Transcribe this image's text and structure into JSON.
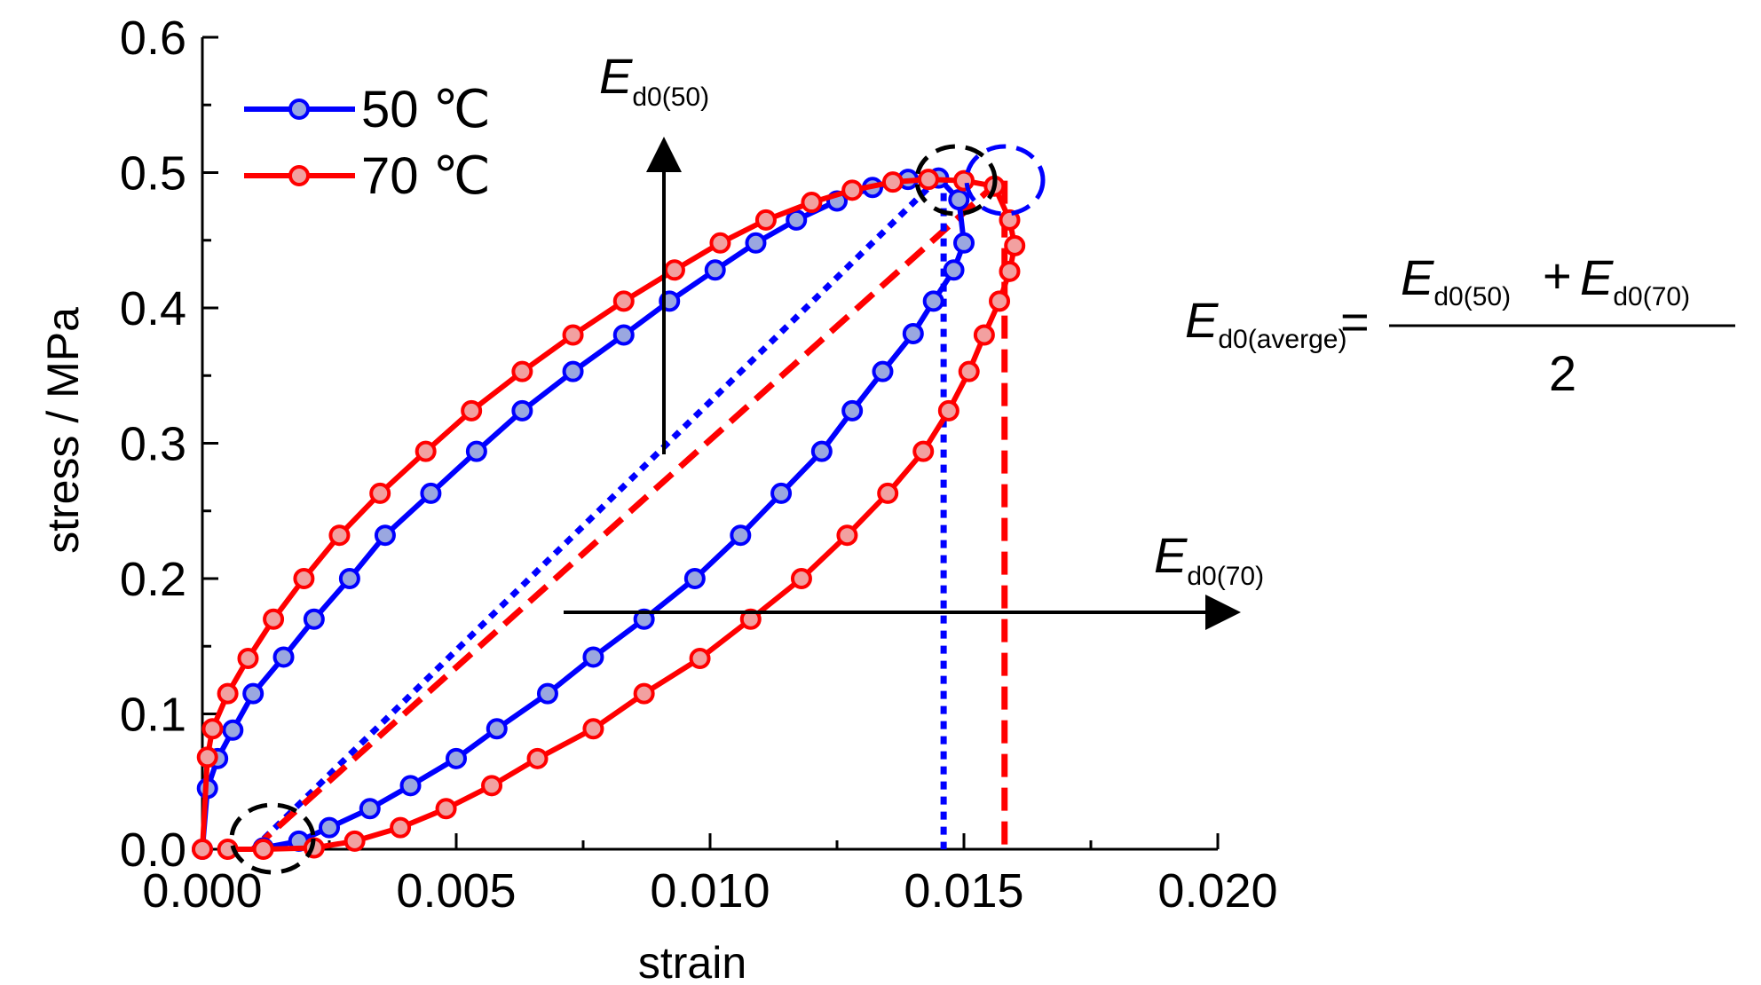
{
  "chart_data": {
    "type": "line",
    "xlabel": "strain",
    "ylabel": "stress / MPa",
    "xlim": [
      0,
      0.02
    ],
    "ylim": [
      0,
      0.6
    ],
    "x_ticks": [
      0.0,
      0.005,
      0.01,
      0.015,
      0.02
    ],
    "x_tick_labels": [
      "0.000",
      "0.005",
      "0.010",
      "0.015",
      "0.020"
    ],
    "y_ticks": [
      0.0,
      0.1,
      0.2,
      0.3,
      0.4,
      0.5,
      0.6
    ],
    "y_tick_labels": [
      "0.0",
      "0.1",
      "0.2",
      "0.3",
      "0.4",
      "0.5",
      "0.6"
    ],
    "legend_position": "top-left",
    "grid": false,
    "series": [
      {
        "name": "50 ℃",
        "color": "#0000ff",
        "marker_fill": "#9aa7e0",
        "points": [
          [
            0.0,
            0.0
          ],
          [
            0.0001,
            0.045
          ],
          [
            0.0003,
            0.067
          ],
          [
            0.0006,
            0.088
          ],
          [
            0.001,
            0.115
          ],
          [
            0.0016,
            0.142
          ],
          [
            0.0022,
            0.17
          ],
          [
            0.0029,
            0.2
          ],
          [
            0.0036,
            0.232
          ],
          [
            0.0045,
            0.263
          ],
          [
            0.0054,
            0.294
          ],
          [
            0.0063,
            0.324
          ],
          [
            0.0073,
            0.353
          ],
          [
            0.0083,
            0.38
          ],
          [
            0.0092,
            0.405
          ],
          [
            0.0101,
            0.428
          ],
          [
            0.0109,
            0.448
          ],
          [
            0.0117,
            0.465
          ],
          [
            0.0125,
            0.479
          ],
          [
            0.0132,
            0.489
          ],
          [
            0.0139,
            0.495
          ],
          [
            0.0145,
            0.496
          ],
          [
            0.0149,
            0.48
          ],
          [
            0.015,
            0.448
          ],
          [
            0.0148,
            0.428
          ],
          [
            0.0144,
            0.405
          ],
          [
            0.014,
            0.381
          ],
          [
            0.0134,
            0.353
          ],
          [
            0.0128,
            0.324
          ],
          [
            0.0122,
            0.294
          ],
          [
            0.0114,
            0.263
          ],
          [
            0.0106,
            0.232
          ],
          [
            0.0097,
            0.2
          ],
          [
            0.0087,
            0.17
          ],
          [
            0.0077,
            0.142
          ],
          [
            0.0068,
            0.115
          ],
          [
            0.0058,
            0.089
          ],
          [
            0.005,
            0.067
          ],
          [
            0.0041,
            0.047
          ],
          [
            0.0033,
            0.03
          ],
          [
            0.0025,
            0.016
          ],
          [
            0.0019,
            0.006
          ],
          [
            0.0012,
            0.001
          ]
        ]
      },
      {
        "name": "70 ℃",
        "color": "#ff0000",
        "marker_fill": "#f2a0a0",
        "points": [
          [
            0.0,
            0.0
          ],
          [
            0.0001,
            0.068
          ],
          [
            0.0002,
            0.089
          ],
          [
            0.0005,
            0.115
          ],
          [
            0.0009,
            0.141
          ],
          [
            0.0014,
            0.17
          ],
          [
            0.002,
            0.2
          ],
          [
            0.0027,
            0.232
          ],
          [
            0.0035,
            0.263
          ],
          [
            0.0044,
            0.294
          ],
          [
            0.0053,
            0.324
          ],
          [
            0.0063,
            0.353
          ],
          [
            0.0073,
            0.38
          ],
          [
            0.0083,
            0.405
          ],
          [
            0.0093,
            0.428
          ],
          [
            0.0102,
            0.448
          ],
          [
            0.0111,
            0.465
          ],
          [
            0.012,
            0.478
          ],
          [
            0.0128,
            0.487
          ],
          [
            0.0136,
            0.493
          ],
          [
            0.0143,
            0.495
          ],
          [
            0.015,
            0.494
          ],
          [
            0.0156,
            0.49
          ],
          [
            0.0159,
            0.465
          ],
          [
            0.016,
            0.446
          ],
          [
            0.0159,
            0.427
          ],
          [
            0.0157,
            0.405
          ],
          [
            0.0154,
            0.38
          ],
          [
            0.0151,
            0.353
          ],
          [
            0.0147,
            0.324
          ],
          [
            0.0142,
            0.294
          ],
          [
            0.0135,
            0.263
          ],
          [
            0.0127,
            0.232
          ],
          [
            0.0118,
            0.2
          ],
          [
            0.0108,
            0.17
          ],
          [
            0.0098,
            0.141
          ],
          [
            0.0087,
            0.115
          ],
          [
            0.0077,
            0.089
          ],
          [
            0.0066,
            0.067
          ],
          [
            0.0057,
            0.047
          ],
          [
            0.0048,
            0.03
          ],
          [
            0.0039,
            0.016
          ],
          [
            0.003,
            0.006
          ],
          [
            0.0022,
            0.001
          ],
          [
            0.0012,
            0.0
          ],
          [
            0.0005,
            0.0
          ]
        ]
      }
    ],
    "reference_lines": [
      {
        "kind": "secant-50",
        "color": "#0000ff",
        "dash": "dotted",
        "from": [
          0.001,
          0.0
        ],
        "to": [
          0.0145,
          0.496
        ]
      },
      {
        "kind": "secant-70",
        "color": "#ff0000",
        "dash": "dashed",
        "from": [
          0.001,
          0.0
        ],
        "to": [
          0.0157,
          0.494
        ]
      },
      {
        "kind": "drop-50",
        "color": "#0000ff",
        "dash": "dotted",
        "from": [
          0.0146,
          0.496
        ],
        "to": [
          0.0146,
          0.0
        ]
      },
      {
        "kind": "drop-70",
        "color": "#ff0000",
        "dash": "dashed",
        "from": [
          0.0158,
          0.494
        ],
        "to": [
          0.0158,
          0.0
        ]
      }
    ],
    "annotations": {
      "e50_main": "E",
      "e50_sub": "d0(50)",
      "e70_main": "E",
      "e70_sub": "d0(70)",
      "formula_lhs_main": "E",
      "formula_lhs_sub": "d0(averge)",
      "formula_equals": "=",
      "formula_num_1_main": "E",
      "formula_num_1_sub": "d0(50)",
      "formula_plus": "+",
      "formula_num_2_main": "E",
      "formula_num_2_sub": "d0(70)",
      "formula_denominator": "2"
    },
    "colors": {
      "axis": "#000000",
      "arrow": "#000000",
      "circle_black": "#000000",
      "circle_blue": "#0000ff"
    }
  }
}
